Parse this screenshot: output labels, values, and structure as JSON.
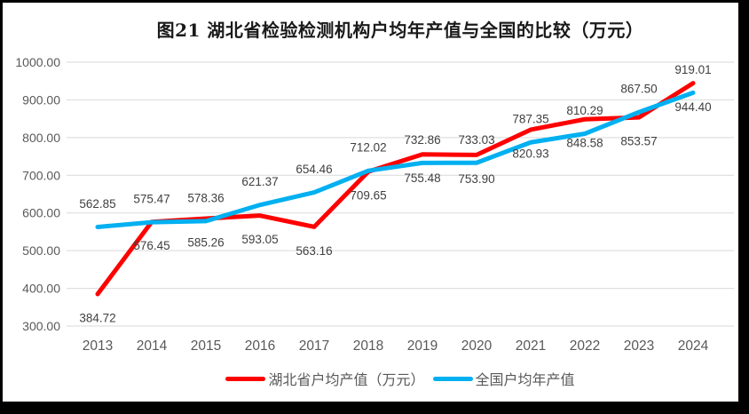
{
  "chart_data": {
    "type": "line",
    "title": "图21 湖北省检验检测机构户均年产值与全国的比较（万元）",
    "x": [
      "2013",
      "2014",
      "2015",
      "2016",
      "2017",
      "2018",
      "2019",
      "2020",
      "2021",
      "2022",
      "2023",
      "2024"
    ],
    "series": [
      {
        "name": "湖北省户均产值（万元）",
        "color": "#ff0000",
        "label_position": "below",
        "values": [
          384.72,
          576.45,
          585.26,
          593.05,
          563.16,
          709.65,
          755.48,
          753.9,
          820.93,
          848.58,
          853.57,
          944.4
        ]
      },
      {
        "name": "全国户均年产值",
        "color": "#00b0f0",
        "label_position": "above",
        "values": [
          562.85,
          575.47,
          578.36,
          621.37,
          654.46,
          712.02,
          732.86,
          733.03,
          787.35,
          810.29,
          867.5,
          919.01
        ]
      }
    ],
    "xlabel": "",
    "ylabel": "",
    "ylim": [
      300,
      1000
    ],
    "yticks": [
      "300.00",
      "400.00",
      "500.00",
      "600.00",
      "700.00",
      "800.00",
      "900.00",
      "1000.00"
    ],
    "value_decimals": 2,
    "grid": true,
    "legend_position": "bottom",
    "colors": {
      "grid": "#d9d9d9",
      "axis_text": "#595959",
      "data_label_text": "#404040"
    }
  }
}
